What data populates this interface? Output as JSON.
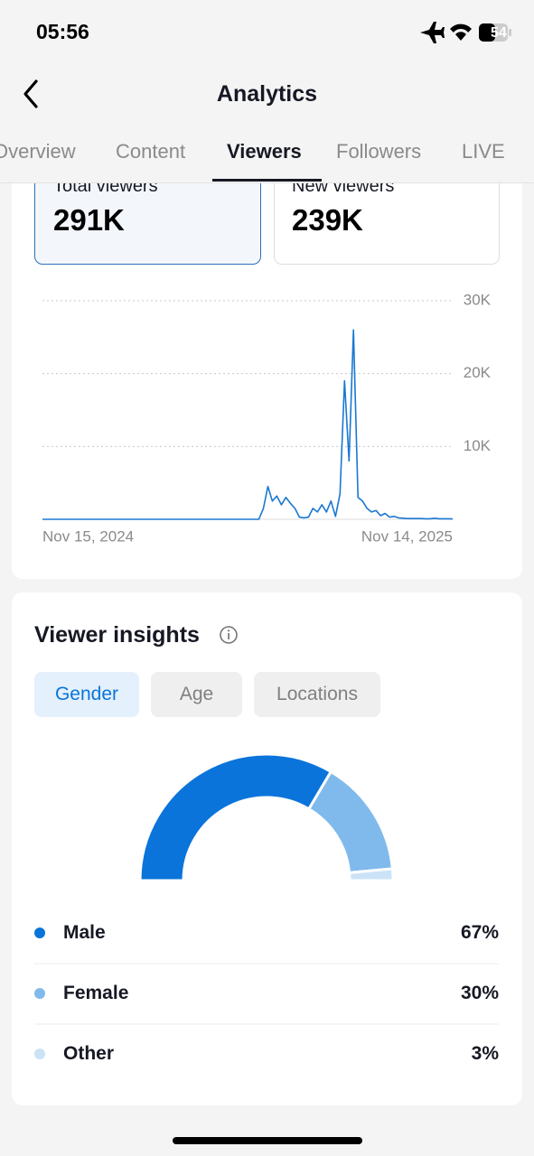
{
  "status_bar": {
    "time": "05:56",
    "battery": "54"
  },
  "header": {
    "title": "Analytics"
  },
  "tabs": [
    "Overview",
    "Content",
    "Viewers",
    "Followers",
    "LIVE"
  ],
  "stats": [
    {
      "label": "Total viewers",
      "value": "291K"
    },
    {
      "label": "New viewers",
      "value": "239K"
    }
  ],
  "chart_data": [
    {
      "type": "line",
      "color": "#1a78d2",
      "grid": true,
      "categories": [
        "Nov 15, 2024",
        null,
        null,
        null,
        null,
        null,
        null,
        null,
        null,
        null,
        null,
        null,
        null,
        null,
        null,
        null,
        null,
        null,
        null,
        null,
        null,
        null,
        null,
        null,
        null,
        null,
        null,
        null,
        null,
        null,
        null,
        null,
        null,
        null,
        null,
        null,
        null,
        null,
        null,
        null,
        null,
        null,
        null,
        null,
        null,
        null,
        null,
        null,
        null,
        null,
        null,
        null,
        null,
        null,
        null,
        null,
        null,
        null,
        null,
        null,
        null,
        null,
        null,
        null,
        null,
        null,
        null,
        null,
        null,
        null,
        null,
        null,
        null,
        null,
        null,
        null,
        null,
        null,
        null,
        null,
        null,
        null,
        null,
        null,
        null,
        null,
        null,
        null,
        null,
        null,
        null,
        "Nov 14, 2025"
      ],
      "values": [
        0,
        0,
        0,
        0,
        0,
        0,
        0,
        0,
        0,
        0,
        0,
        0,
        0,
        0,
        0,
        0,
        0,
        0,
        0,
        0,
        0,
        0,
        0,
        0,
        0,
        0,
        0,
        0,
        0,
        0,
        0,
        0,
        0,
        0,
        0,
        0,
        0,
        0,
        0,
        0,
        0,
        0,
        0,
        0,
        0,
        0,
        0,
        0,
        0,
        1500,
        4500,
        2500,
        3200,
        2000,
        3000,
        2200,
        1500,
        300,
        200,
        300,
        1500,
        1000,
        2000,
        1000,
        2500,
        400,
        3500,
        19000,
        8000,
        26000,
        3000,
        2500,
        1500,
        1000,
        1200,
        500,
        800,
        300,
        400,
        200,
        150,
        100,
        100,
        100,
        100,
        80,
        80,
        150,
        80,
        80,
        80,
        50
      ],
      "ylim": [
        0,
        30000
      ],
      "yticks": [
        {
          "value": 10000,
          "label": "10K"
        },
        {
          "value": 20000,
          "label": "20K"
        },
        {
          "value": 30000,
          "label": "30K"
        }
      ]
    },
    {
      "type": "pie",
      "title": "Viewer insights",
      "categories": [
        "Male",
        "Female",
        "Other"
      ],
      "values": [
        67,
        30,
        3
      ],
      "value_labels": [
        "67%",
        "30%",
        "3%"
      ],
      "colors": [
        "#0a74da",
        "#80baec",
        "#cce3f7"
      ]
    }
  ],
  "filters": [
    "Gender",
    "Age",
    "Locations"
  ]
}
